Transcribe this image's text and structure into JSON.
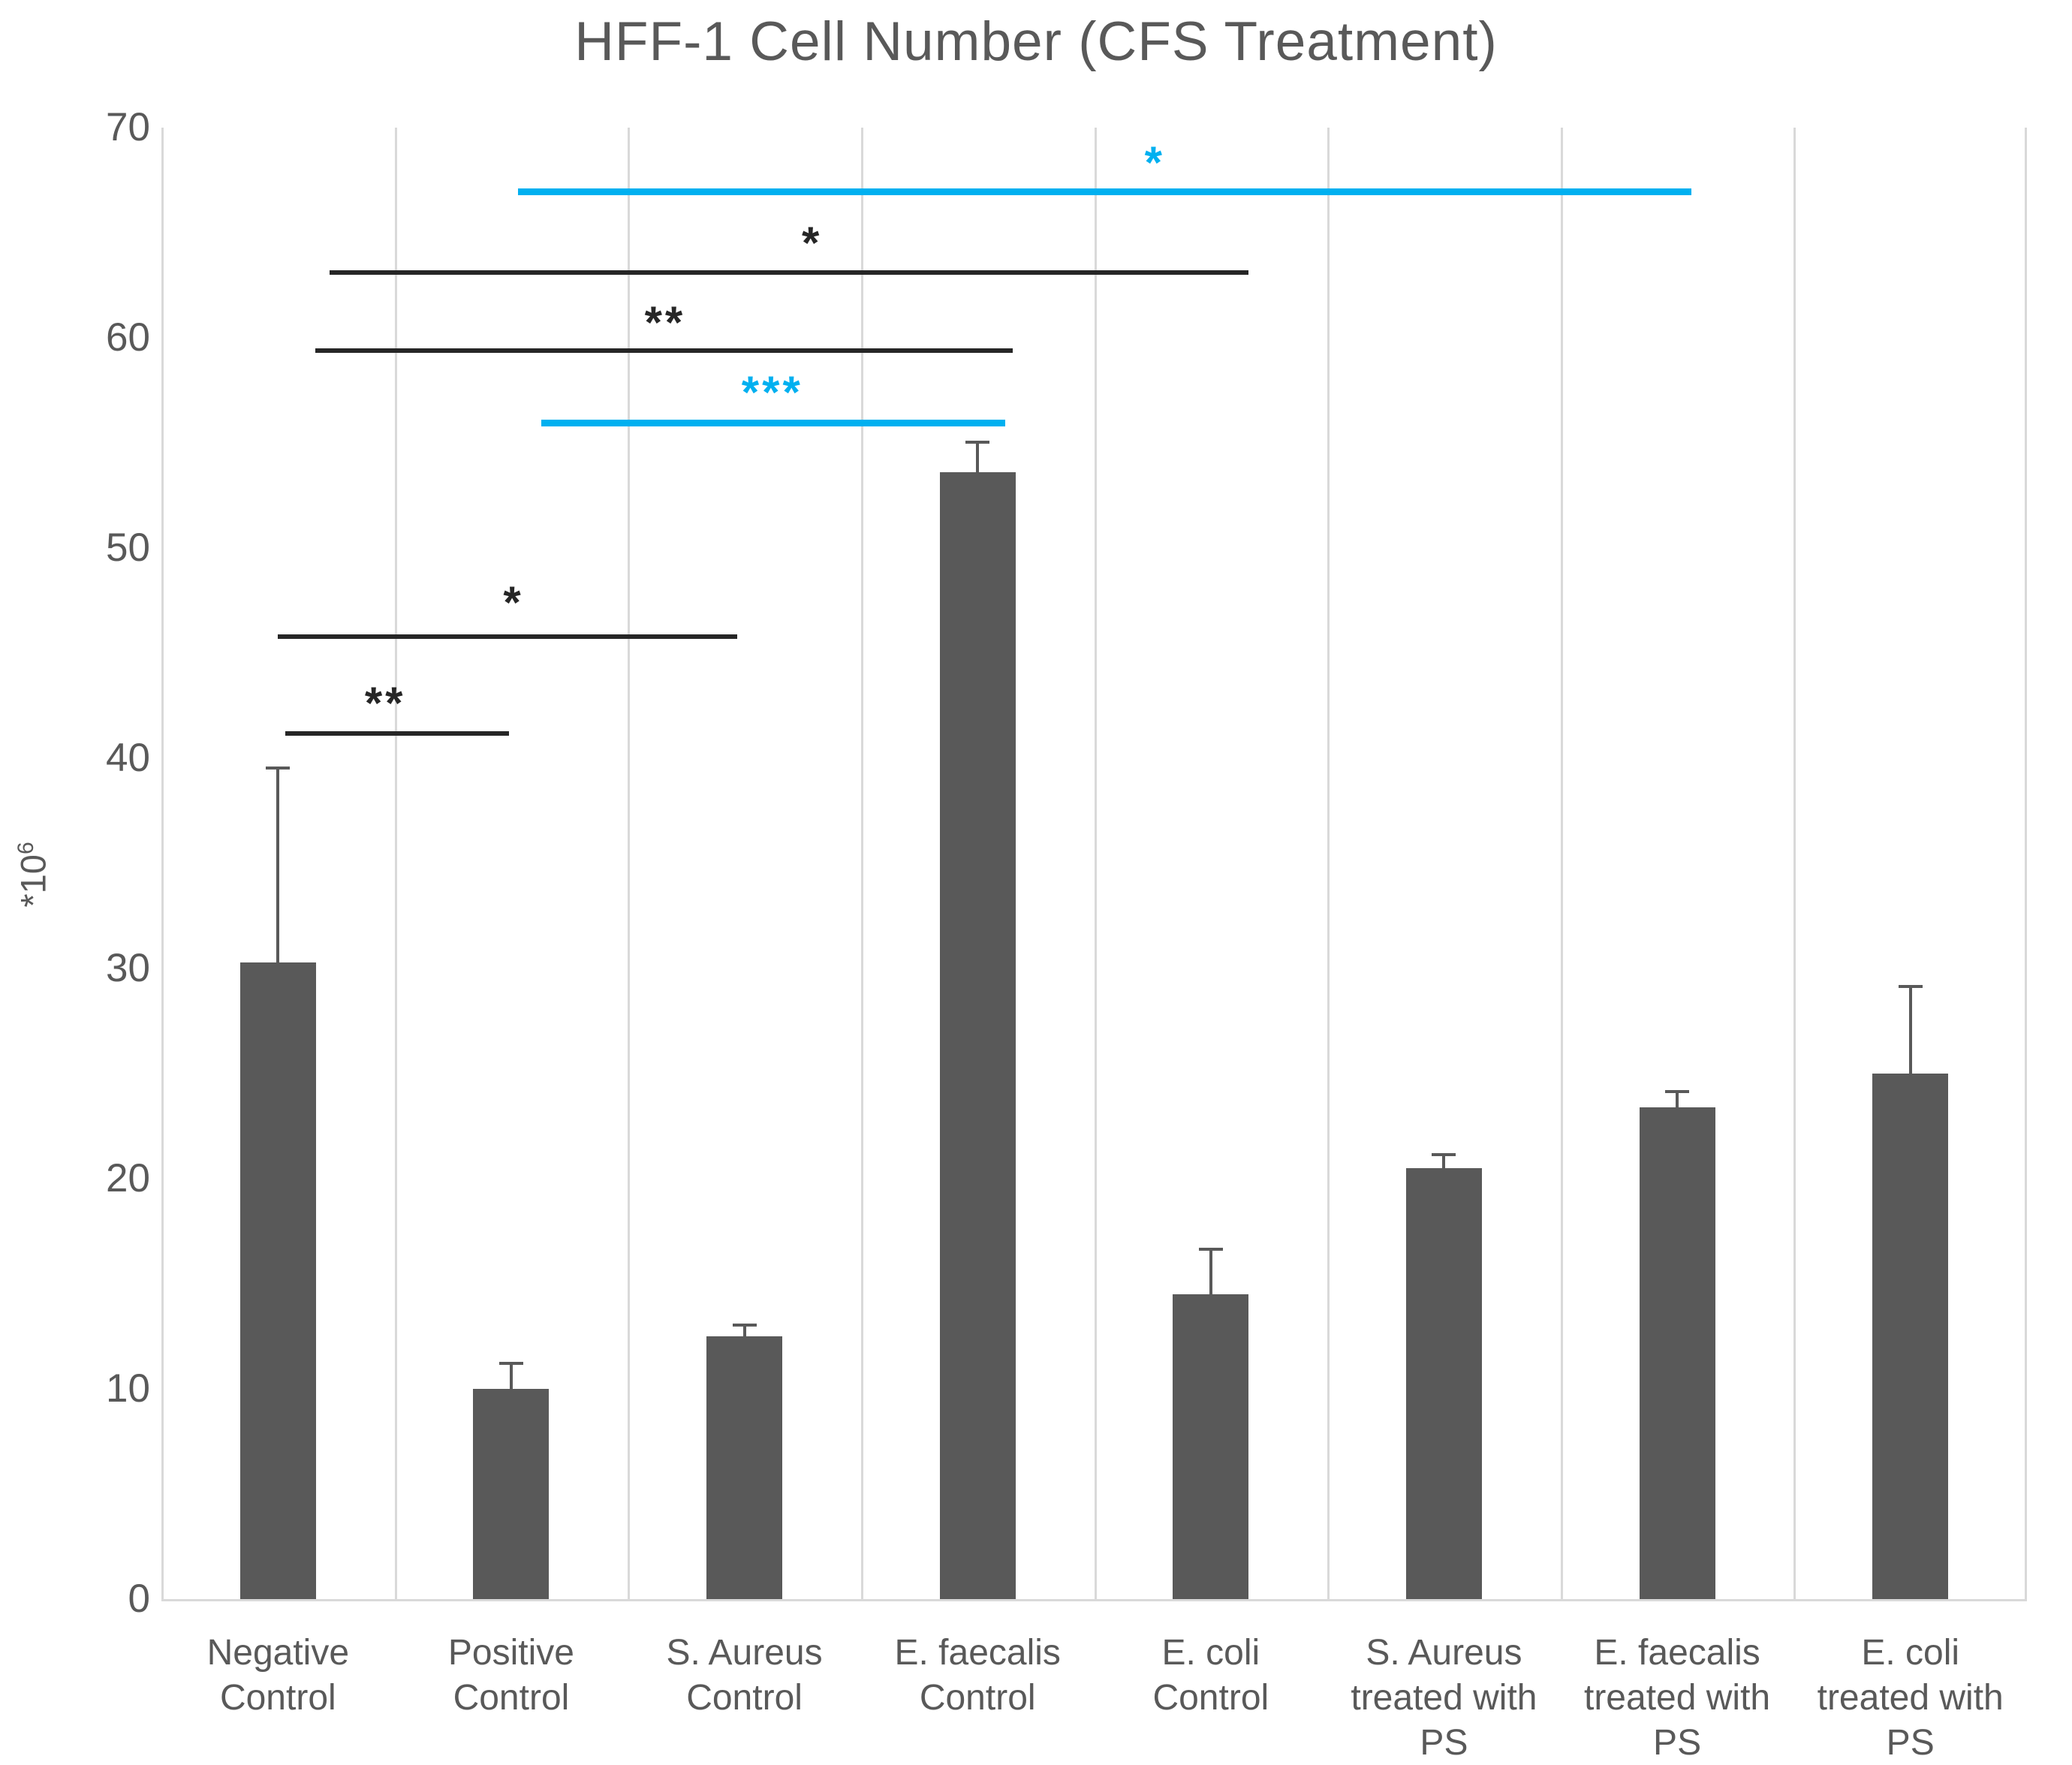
{
  "title": "HFF-1 Cell Number (CFS Treatment)",
  "colors": {
    "bar": "#595959",
    "text": "#595959",
    "grid": "#D9D9D9",
    "sig_black": "#262626",
    "sig_blue": "#00B0F0",
    "background": "#ffffff"
  },
  "chart_data": {
    "type": "bar",
    "title": "HFF-1 Cell Number (CFS Treatment)",
    "ylabel_base": "*10",
    "ylabel_exponent": "6",
    "xlabel": "",
    "ylim": [
      0,
      70
    ],
    "yticks": [
      0,
      10,
      20,
      30,
      40,
      50,
      60,
      70
    ],
    "grid": "vertical-only",
    "legend": "none",
    "categories": [
      "Negative Control",
      "Positive Control",
      "S. Aureus Control",
      "E. faecalis Control",
      "E. coli Control",
      "S. Aureus treated with PS",
      "E. faecalis treated with PS",
      "E. coli treated with PS"
    ],
    "values": [
      30.3,
      10.0,
      12.5,
      53.6,
      14.5,
      20.5,
      23.4,
      25.0
    ],
    "error_plus": [
      9.3,
      1.3,
      0.6,
      1.5,
      2.2,
      0.7,
      0.8,
      4.2
    ],
    "significance_brackets": [
      {
        "x1": 1.03,
        "x2": 6.06,
        "y": 67.1,
        "label": "*",
        "label_x": 3.76,
        "label_y": 68.7,
        "color": "blue"
      },
      {
        "x1": 0.22,
        "x2": 4.16,
        "y": 63.2,
        "label": "*",
        "label_x": 2.29,
        "label_y": 64.9,
        "color": "black"
      },
      {
        "x1": 0.16,
        "x2": 3.15,
        "y": 59.5,
        "label": "**",
        "label_x": 1.66,
        "label_y": 61.1,
        "color": "black"
      },
      {
        "x1": 1.13,
        "x2": 3.12,
        "y": 56.1,
        "label": "***",
        "label_x": 2.12,
        "label_y": 57.8,
        "color": "blue"
      },
      {
        "x1": 0.0,
        "x2": 1.97,
        "y": 45.9,
        "label": "*",
        "label_x": 1.01,
        "label_y": 47.8,
        "color": "black"
      },
      {
        "x1": 0.03,
        "x2": 0.99,
        "y": 41.3,
        "label": "**",
        "label_x": 0.46,
        "label_y": 43.0,
        "color": "black"
      }
    ]
  }
}
